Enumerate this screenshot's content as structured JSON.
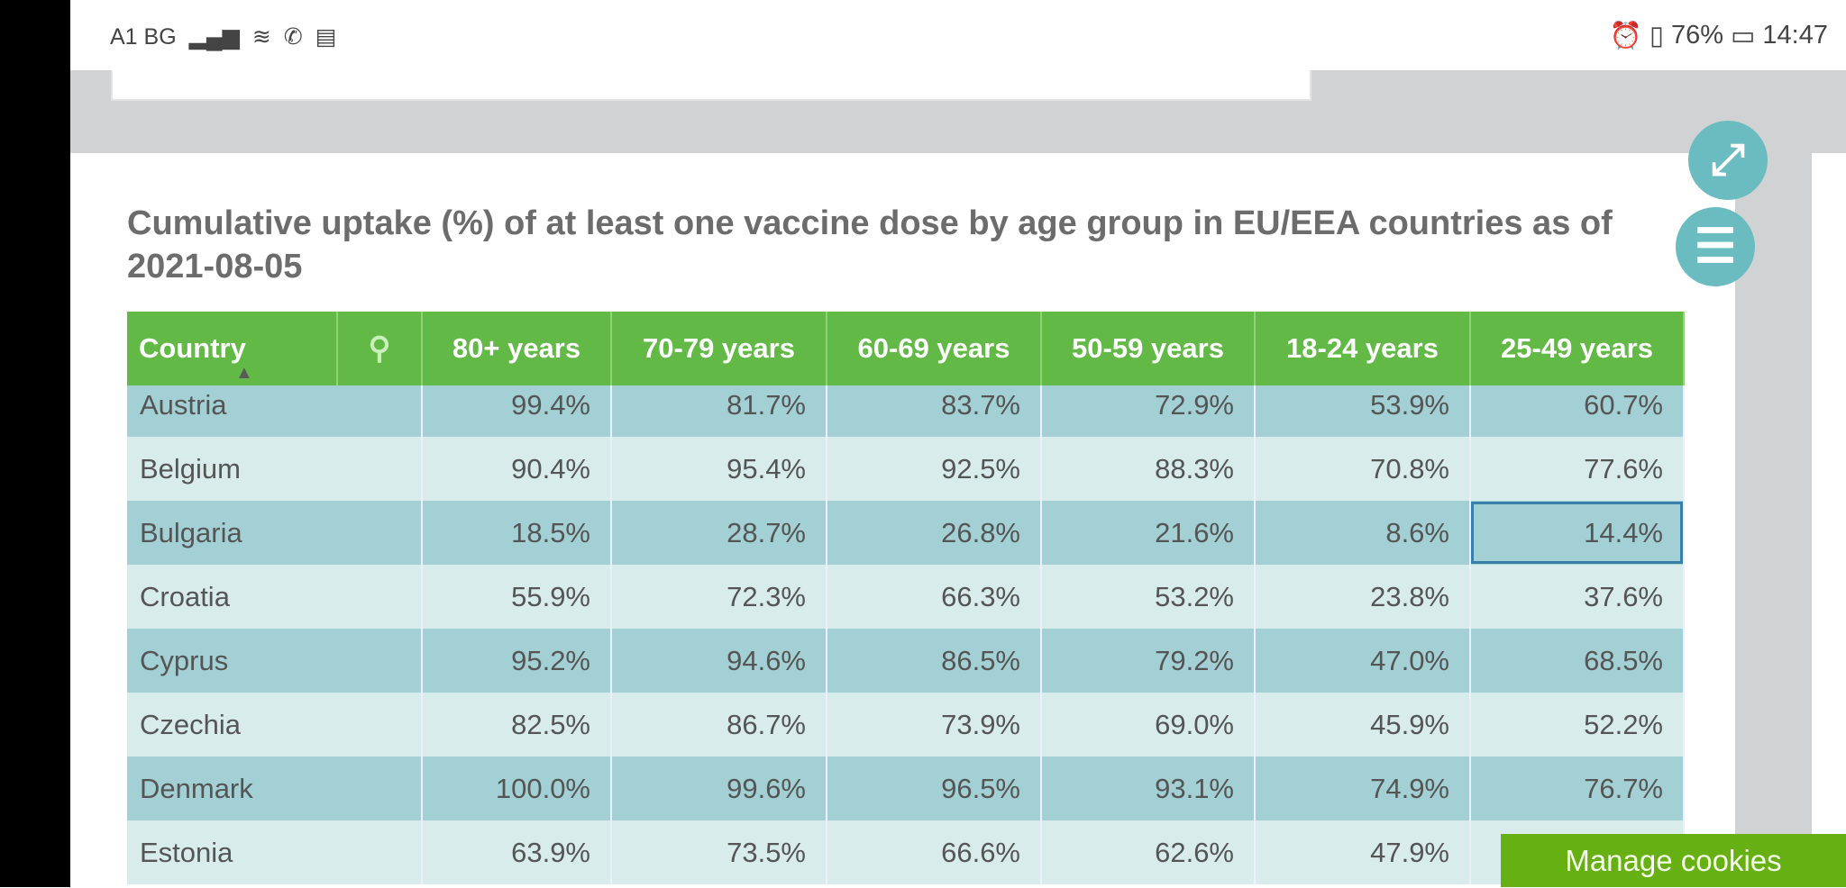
{
  "status_bar": {
    "carrier": "A1 BG",
    "battery": "76%",
    "time": "14:47"
  },
  "title": "Cumulative uptake (%) of at least one vaccine dose by age group in EU/EEA countries as of 2021-08-05",
  "table": {
    "headers": [
      "Country",
      "80+ years",
      "70-79 years",
      "60-69 years",
      "50-59 years",
      "18-24 years",
      "25-49 years"
    ],
    "rows": [
      [
        "Austria",
        "99.4%",
        "81.7%",
        "83.7%",
        "72.9%",
        "53.9%",
        "60.7%"
      ],
      [
        "Belgium",
        "90.4%",
        "95.4%",
        "92.5%",
        "88.3%",
        "70.8%",
        "77.6%"
      ],
      [
        "Bulgaria",
        "18.5%",
        "28.7%",
        "26.8%",
        "21.6%",
        "8.6%",
        "14.4%"
      ],
      [
        "Croatia",
        "55.9%",
        "72.3%",
        "66.3%",
        "53.2%",
        "23.8%",
        "37.6%"
      ],
      [
        "Cyprus",
        "95.2%",
        "94.6%",
        "86.5%",
        "79.2%",
        "47.0%",
        "68.5%"
      ],
      [
        "Czechia",
        "82.5%",
        "86.7%",
        "73.9%",
        "69.0%",
        "45.9%",
        "52.2%"
      ],
      [
        "Denmark",
        "100.0%",
        "99.6%",
        "96.5%",
        "93.1%",
        "74.9%",
        "76.7%"
      ],
      [
        "Estonia",
        "63.9%",
        "73.5%",
        "66.6%",
        "62.6%",
        "47.9%",
        ""
      ]
    ]
  },
  "cookies_button": "Manage cookies",
  "colors": {
    "header": "#62b946",
    "row_dark": "#a3d0d4",
    "row_light": "#d8ecec",
    "fab": "#6bbcc0",
    "cookies": "#66b014"
  }
}
